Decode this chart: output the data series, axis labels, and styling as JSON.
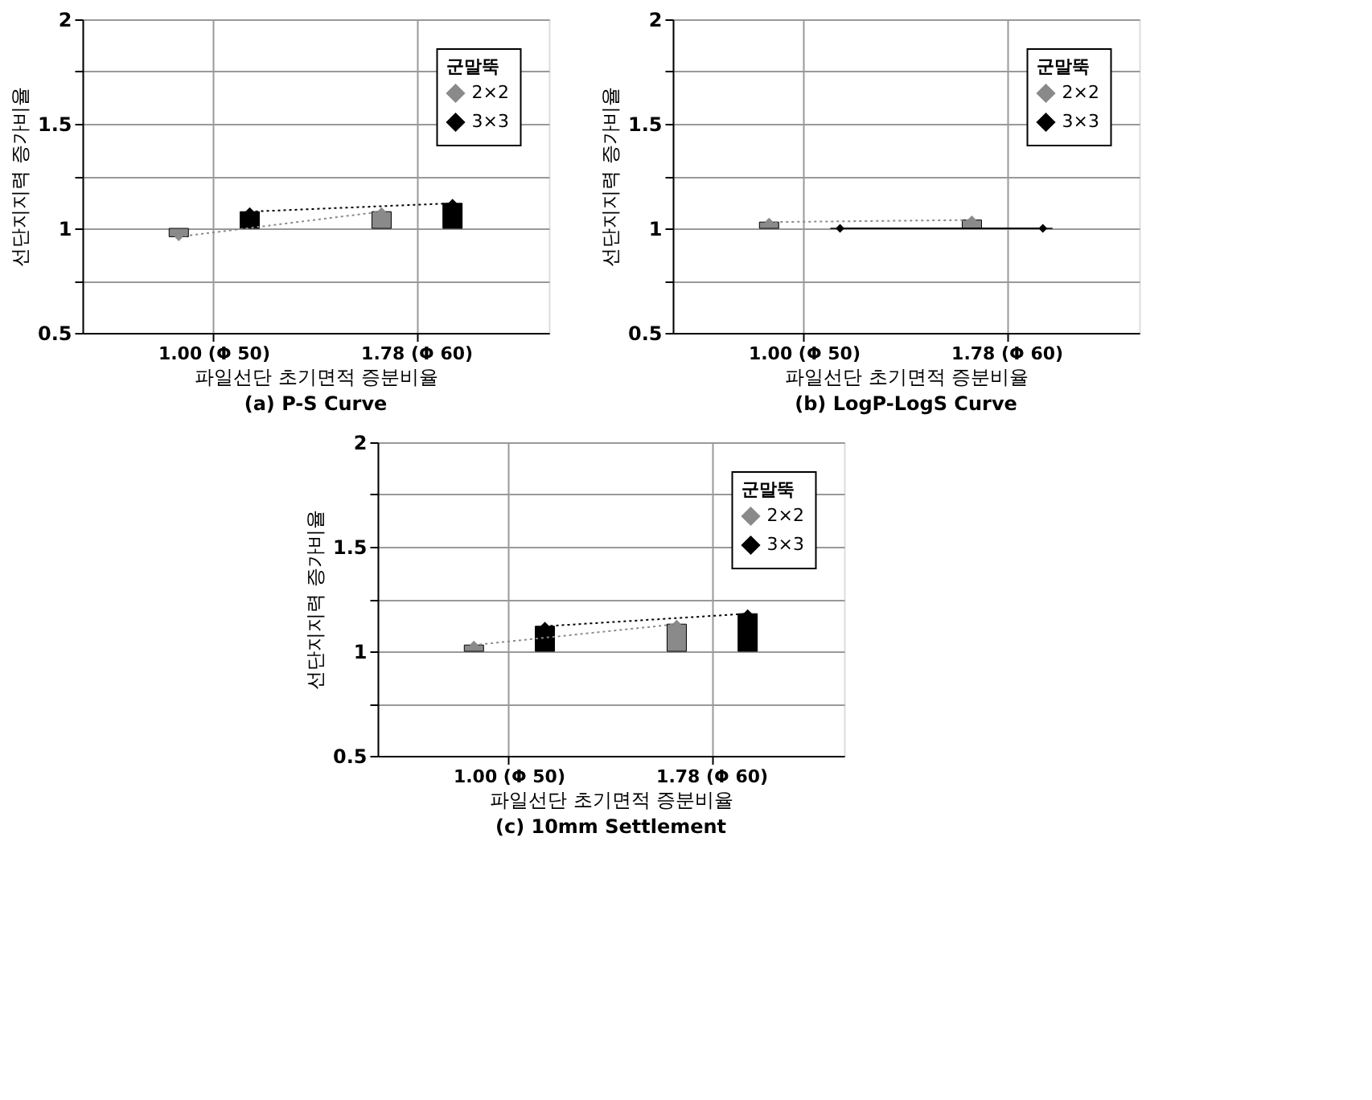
{
  "chart_data": [
    {
      "type": "bar",
      "title": "(a) P-S Curve",
      "xlabel": "파일선단 초기면적 증분비율",
      "ylabel": "선단지지력 증가비율",
      "legend_title": "군말뚝",
      "legend": "top right",
      "grid": true,
      "marker": "diamond",
      "categories": [
        "1.00 (Φ 50)",
        "1.78 (Φ 60)"
      ],
      "ylim": [
        0.5,
        2
      ],
      "yticks": [
        0.5,
        {
          "value": 0.75,
          "label": null
        },
        1,
        {
          "value": 1.25,
          "label": null
        },
        1.5,
        {
          "value": 1.75,
          "label": null
        },
        2
      ],
      "series": [
        {
          "name": "2×2",
          "color": "#8a8a8a",
          "line_style": "dotted",
          "base": [
            1,
            1
          ],
          "values": [
            -0.04,
            0.08
          ]
        },
        {
          "name": "3×3",
          "color": "#000000",
          "line_style": "dotted",
          "base": [
            1,
            1
          ],
          "values": [
            0.08,
            0.12
          ]
        }
      ]
    },
    {
      "type": "bar",
      "title": "(b) LogP-LogS Curve",
      "xlabel": "파일선단 초기면적 증분비율",
      "ylabel": "선단지지력 증가비율",
      "legend_title": "군말뚝",
      "legend": "top right",
      "grid": true,
      "marker": "diamond",
      "categories": [
        "1.00 (Φ 50)",
        "1.78 (Φ 60)"
      ],
      "ylim": [
        0.5,
        2
      ],
      "yticks": [
        0.5,
        {
          "value": 0.75,
          "label": null
        },
        1,
        {
          "value": 1.25,
          "label": null
        },
        1.5,
        {
          "value": 1.75,
          "label": null
        },
        2
      ],
      "series": [
        {
          "name": "2×2",
          "color": "#8a8a8a",
          "line_style": "dotted",
          "base": [
            1,
            1
          ],
          "values": [
            0.03,
            0.04
          ]
        },
        {
          "name": "3×3",
          "color": "#000000",
          "line_style": "solid",
          "base": [
            1,
            1
          ],
          "values": [
            0,
            0
          ]
        }
      ]
    },
    {
      "type": "bar",
      "title": "(c) 10mm Settlement",
      "xlabel": "파일선단 초기면적 증분비율",
      "ylabel": "선단지지력 증가비율",
      "legend_title": "군말뚝",
      "legend": "top right",
      "grid": true,
      "marker": "diamond",
      "categories": [
        "1.00 (Φ 50)",
        "1.78 (Φ 60)"
      ],
      "ylim": [
        0.5,
        2
      ],
      "yticks": [
        0.5,
        {
          "value": 0.75,
          "label": null
        },
        1,
        {
          "value": 1.25,
          "label": null
        },
        1.5,
        {
          "value": 1.75,
          "label": null
        },
        2
      ],
      "series": [
        {
          "name": "2×2",
          "color": "#8a8a8a",
          "line_style": "dotted",
          "base": [
            1,
            1
          ],
          "values": [
            0.03,
            0.13
          ]
        },
        {
          "name": "3×3",
          "color": "#000000",
          "line_style": "dotted",
          "base": [
            1,
            1
          ],
          "values": [
            0.12,
            0.18
          ]
        }
      ]
    }
  ]
}
